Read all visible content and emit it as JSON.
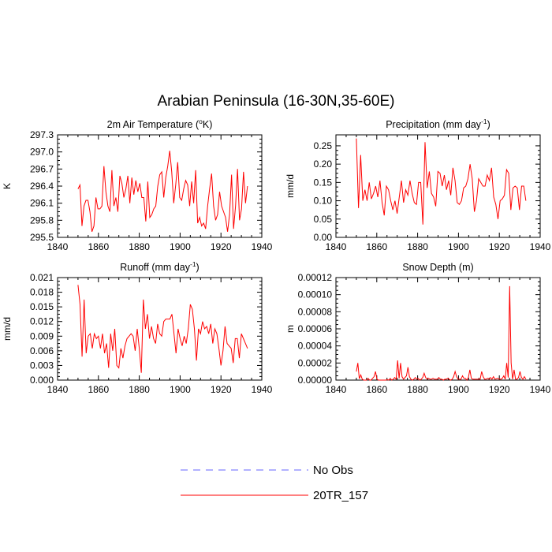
{
  "figure": {
    "title": "Arabian Peninsula (16-30N,35-60E)"
  },
  "legend": {
    "items": [
      {
        "label": "No Obs",
        "color": "#6666ff",
        "style": "dashed"
      },
      {
        "label": "20TR_157",
        "color": "#ff0000",
        "style": "solid"
      }
    ]
  },
  "chart_data": [
    {
      "type": "line",
      "title": "2m Air Temperature (°K)",
      "title_main": "2m Air Temperature (",
      "title_sup": "o",
      "title_tail": "K)",
      "xlabel": "",
      "ylabel": "K",
      "xlim": [
        1840,
        1940
      ],
      "ylim": [
        295.5,
        297.3
      ],
      "xticks": [
        1840,
        1860,
        1880,
        1900,
        1920,
        1940
      ],
      "yticks": [
        295.5,
        295.8,
        296.1,
        296.4,
        296.7,
        297.0,
        297.3
      ],
      "ytick_labels": [
        "295.5",
        "295.8",
        "296.1",
        "296.4",
        "296.7",
        "297.0",
        "297.3"
      ],
      "x_start": 1850,
      "color": "#ff0000",
      "values": [
        296.35,
        296.42,
        295.7,
        296.05,
        296.15,
        296.15,
        295.95,
        295.6,
        295.7,
        296.2,
        296.0,
        296.0,
        296.05,
        296.75,
        296.3,
        296.05,
        295.95,
        296.68,
        296.05,
        296.2,
        295.95,
        296.58,
        296.45,
        296.2,
        296.35,
        296.58,
        296.1,
        296.55,
        296.25,
        296.5,
        296.3,
        296.45,
        296.2,
        296.2,
        295.78,
        296.48,
        295.85,
        295.9,
        296.0,
        296.05,
        296.4,
        296.6,
        296.65,
        296.2,
        296.55,
        296.75,
        297.02,
        296.65,
        296.1,
        296.42,
        296.82,
        296.2,
        296.15,
        296.35,
        296.5,
        296.42,
        296.05,
        296.48,
        296.1,
        296.68,
        295.75,
        295.85,
        295.7,
        295.75,
        295.65,
        296.05,
        296.35,
        296.62,
        296.05,
        295.8,
        295.9,
        296.3,
        296.05,
        295.95,
        295.85,
        295.6,
        295.9,
        296.6,
        295.65,
        296.05,
        296.7,
        295.8,
        296.0,
        296.65,
        296.1,
        296.4
      ]
    },
    {
      "type": "line",
      "title": "Precipitation (mm day-1)",
      "title_main": "Precipitation (mm day",
      "title_sup": "-1",
      "title_tail": ")",
      "xlabel": "",
      "ylabel": "mm/d",
      "xlim": [
        1840,
        1940
      ],
      "ylim": [
        0.0,
        0.28
      ],
      "xticks": [
        1840,
        1860,
        1880,
        1900,
        1920,
        1940
      ],
      "yticks": [
        0.0,
        0.05,
        0.1,
        0.15,
        0.2,
        0.25
      ],
      "ytick_labels": [
        "0.00",
        "0.05",
        "0.10",
        "0.15",
        "0.20",
        "0.25"
      ],
      "x_start": 1850,
      "color": "#ff0000",
      "values": [
        0.27,
        0.08,
        0.225,
        0.1,
        0.13,
        0.1,
        0.15,
        0.105,
        0.12,
        0.14,
        0.11,
        0.155,
        0.095,
        0.06,
        0.14,
        0.13,
        0.1,
        0.075,
        0.1,
        0.065,
        0.11,
        0.155,
        0.095,
        0.13,
        0.115,
        0.155,
        0.12,
        0.095,
        0.09,
        0.15,
        0.15,
        0.035,
        0.26,
        0.135,
        0.18,
        0.12,
        0.11,
        0.085,
        0.18,
        0.175,
        0.14,
        0.17,
        0.13,
        0.155,
        0.115,
        0.19,
        0.155,
        0.095,
        0.09,
        0.1,
        0.135,
        0.14,
        0.16,
        0.2,
        0.16,
        0.07,
        0.1,
        0.16,
        0.15,
        0.14,
        0.14,
        0.17,
        0.155,
        0.19,
        0.11,
        0.09,
        0.05,
        0.1,
        0.105,
        0.115,
        0.185,
        0.175,
        0.075,
        0.135,
        0.14,
        0.135,
        0.075,
        0.14,
        0.14,
        0.1
      ]
    },
    {
      "type": "line",
      "title": "Runoff (mm day-1)",
      "title_main": "Runoff (mm day",
      "title_sup": "-1",
      "title_tail": ")",
      "xlabel": "",
      "ylabel": "mm/d",
      "xlim": [
        1840,
        1940
      ],
      "ylim": [
        0.0,
        0.021
      ],
      "xticks": [
        1840,
        1860,
        1880,
        1900,
        1920,
        1940
      ],
      "yticks": [
        0.0,
        0.003,
        0.006,
        0.009,
        0.012,
        0.015,
        0.018,
        0.021
      ],
      "ytick_labels": [
        "0.000",
        "0.003",
        "0.006",
        "0.009",
        "0.012",
        "0.015",
        "0.018",
        "0.021"
      ],
      "x_start": 1850,
      "color": "#ff0000",
      "values": [
        0.0195,
        0.0155,
        0.0048,
        0.0165,
        0.0055,
        0.009,
        0.0095,
        0.0065,
        0.0095,
        0.0085,
        0.009,
        0.0065,
        0.0095,
        0.0055,
        0.0075,
        0.0025,
        0.0095,
        0.006,
        0.0105,
        0.003,
        0.0025,
        0.0065,
        0.0045,
        0.007,
        0.0085,
        0.009,
        0.0095,
        0.009,
        0.006,
        0.0105,
        0.0065,
        0.0015,
        0.0165,
        0.0105,
        0.0135,
        0.0085,
        0.011,
        0.0085,
        0.0075,
        0.0115,
        0.0095,
        0.009,
        0.012,
        0.0125,
        0.0125,
        0.0125,
        0.0135,
        0.0095,
        0.0055,
        0.0105,
        0.0085,
        0.007,
        0.009,
        0.0075,
        0.0105,
        0.0155,
        0.0145,
        0.0105,
        0.004,
        0.0105,
        0.0095,
        0.012,
        0.0105,
        0.011,
        0.0095,
        0.0115,
        0.0075,
        0.0105,
        0.0095,
        0.0065,
        0.003,
        0.006,
        0.011,
        0.0075,
        0.007,
        0.0065,
        0.0035,
        0.0085,
        0.0085,
        0.0045,
        0.0095,
        0.0085,
        0.0075,
        0.0065
      ]
    },
    {
      "type": "line",
      "title": "Snow Depth (m)",
      "title_main": "Snow Depth (m)",
      "title_sup": "",
      "title_tail": "",
      "xlabel": "",
      "ylabel": "m",
      "xlim": [
        1840,
        1940
      ],
      "ylim": [
        0.0,
        0.00012
      ],
      "xticks": [
        1840,
        1860,
        1880,
        1900,
        1920,
        1940
      ],
      "yticks": [
        0.0,
        2e-05,
        4e-05,
        6e-05,
        8e-05,
        0.0001,
        0.00012
      ],
      "ytick_labels": [
        "0.00000",
        "0.00002",
        "0.00004",
        "0.00006",
        "0.00008",
        "0.00010",
        "0.00012"
      ],
      "x_start": 1850,
      "color": "#ff0000",
      "values": [
        1e-05,
        2e-05,
        1.5e-06,
        6e-06,
        1e-06,
        0,
        0,
        0,
        2e-06,
        0.0,
        0.0,
        2e-06,
        4e-06,
        1e-05,
        1e-06,
        0,
        0,
        0,
        0,
        0,
        0,
        5e-07,
        0,
        2e-06,
        0,
        1e-06,
        3e-06,
        1e-06,
        2.3e-05,
        2e-06,
        2e-05,
        4e-06,
        1e-06,
        3e-06,
        5e-06,
        1.5e-05,
        4e-06,
        1e-06,
        0,
        1e-06,
        3e-06,
        1e-06,
        2e-06,
        0,
        1e-06,
        3e-06,
        8e-06,
        3e-06,
        1e-06,
        2e-06,
        1e-06,
        1e-06,
        2e-06,
        1e-06,
        1e-06,
        1e-06,
        3e-06,
        1e-06,
        1e-06,
        0,
        1e-06,
        1e-06,
        2e-06,
        1e-06,
        0,
        1e-06,
        4e-06,
        1e-05,
        4e-06,
        1e-06,
        1e-06,
        1e-06,
        5e-06,
        2e-06,
        2e-06,
        0,
        3e-06,
        1.2e-05,
        2e-06,
        1e-06,
        1e-06,
        1e-06,
        1e-06,
        1e-06,
        1e-06,
        1e-05,
        4e-06,
        1e-06,
        1e-06,
        2e-06,
        1e-06,
        3e-06,
        1e-06,
        4e-06,
        1e-06,
        1.5e-06,
        2e-06,
        1e-06,
        1e-06,
        2e-06,
        5e-06,
        1e-06,
        2e-05,
        3e-06,
        0.00011,
        2e-05,
        1e-06,
        1.2e-05,
        1e-06,
        1e-06,
        3e-06,
        1e-05,
        3e-06,
        1e-06,
        4e-06,
        1e-06
      ]
    }
  ]
}
